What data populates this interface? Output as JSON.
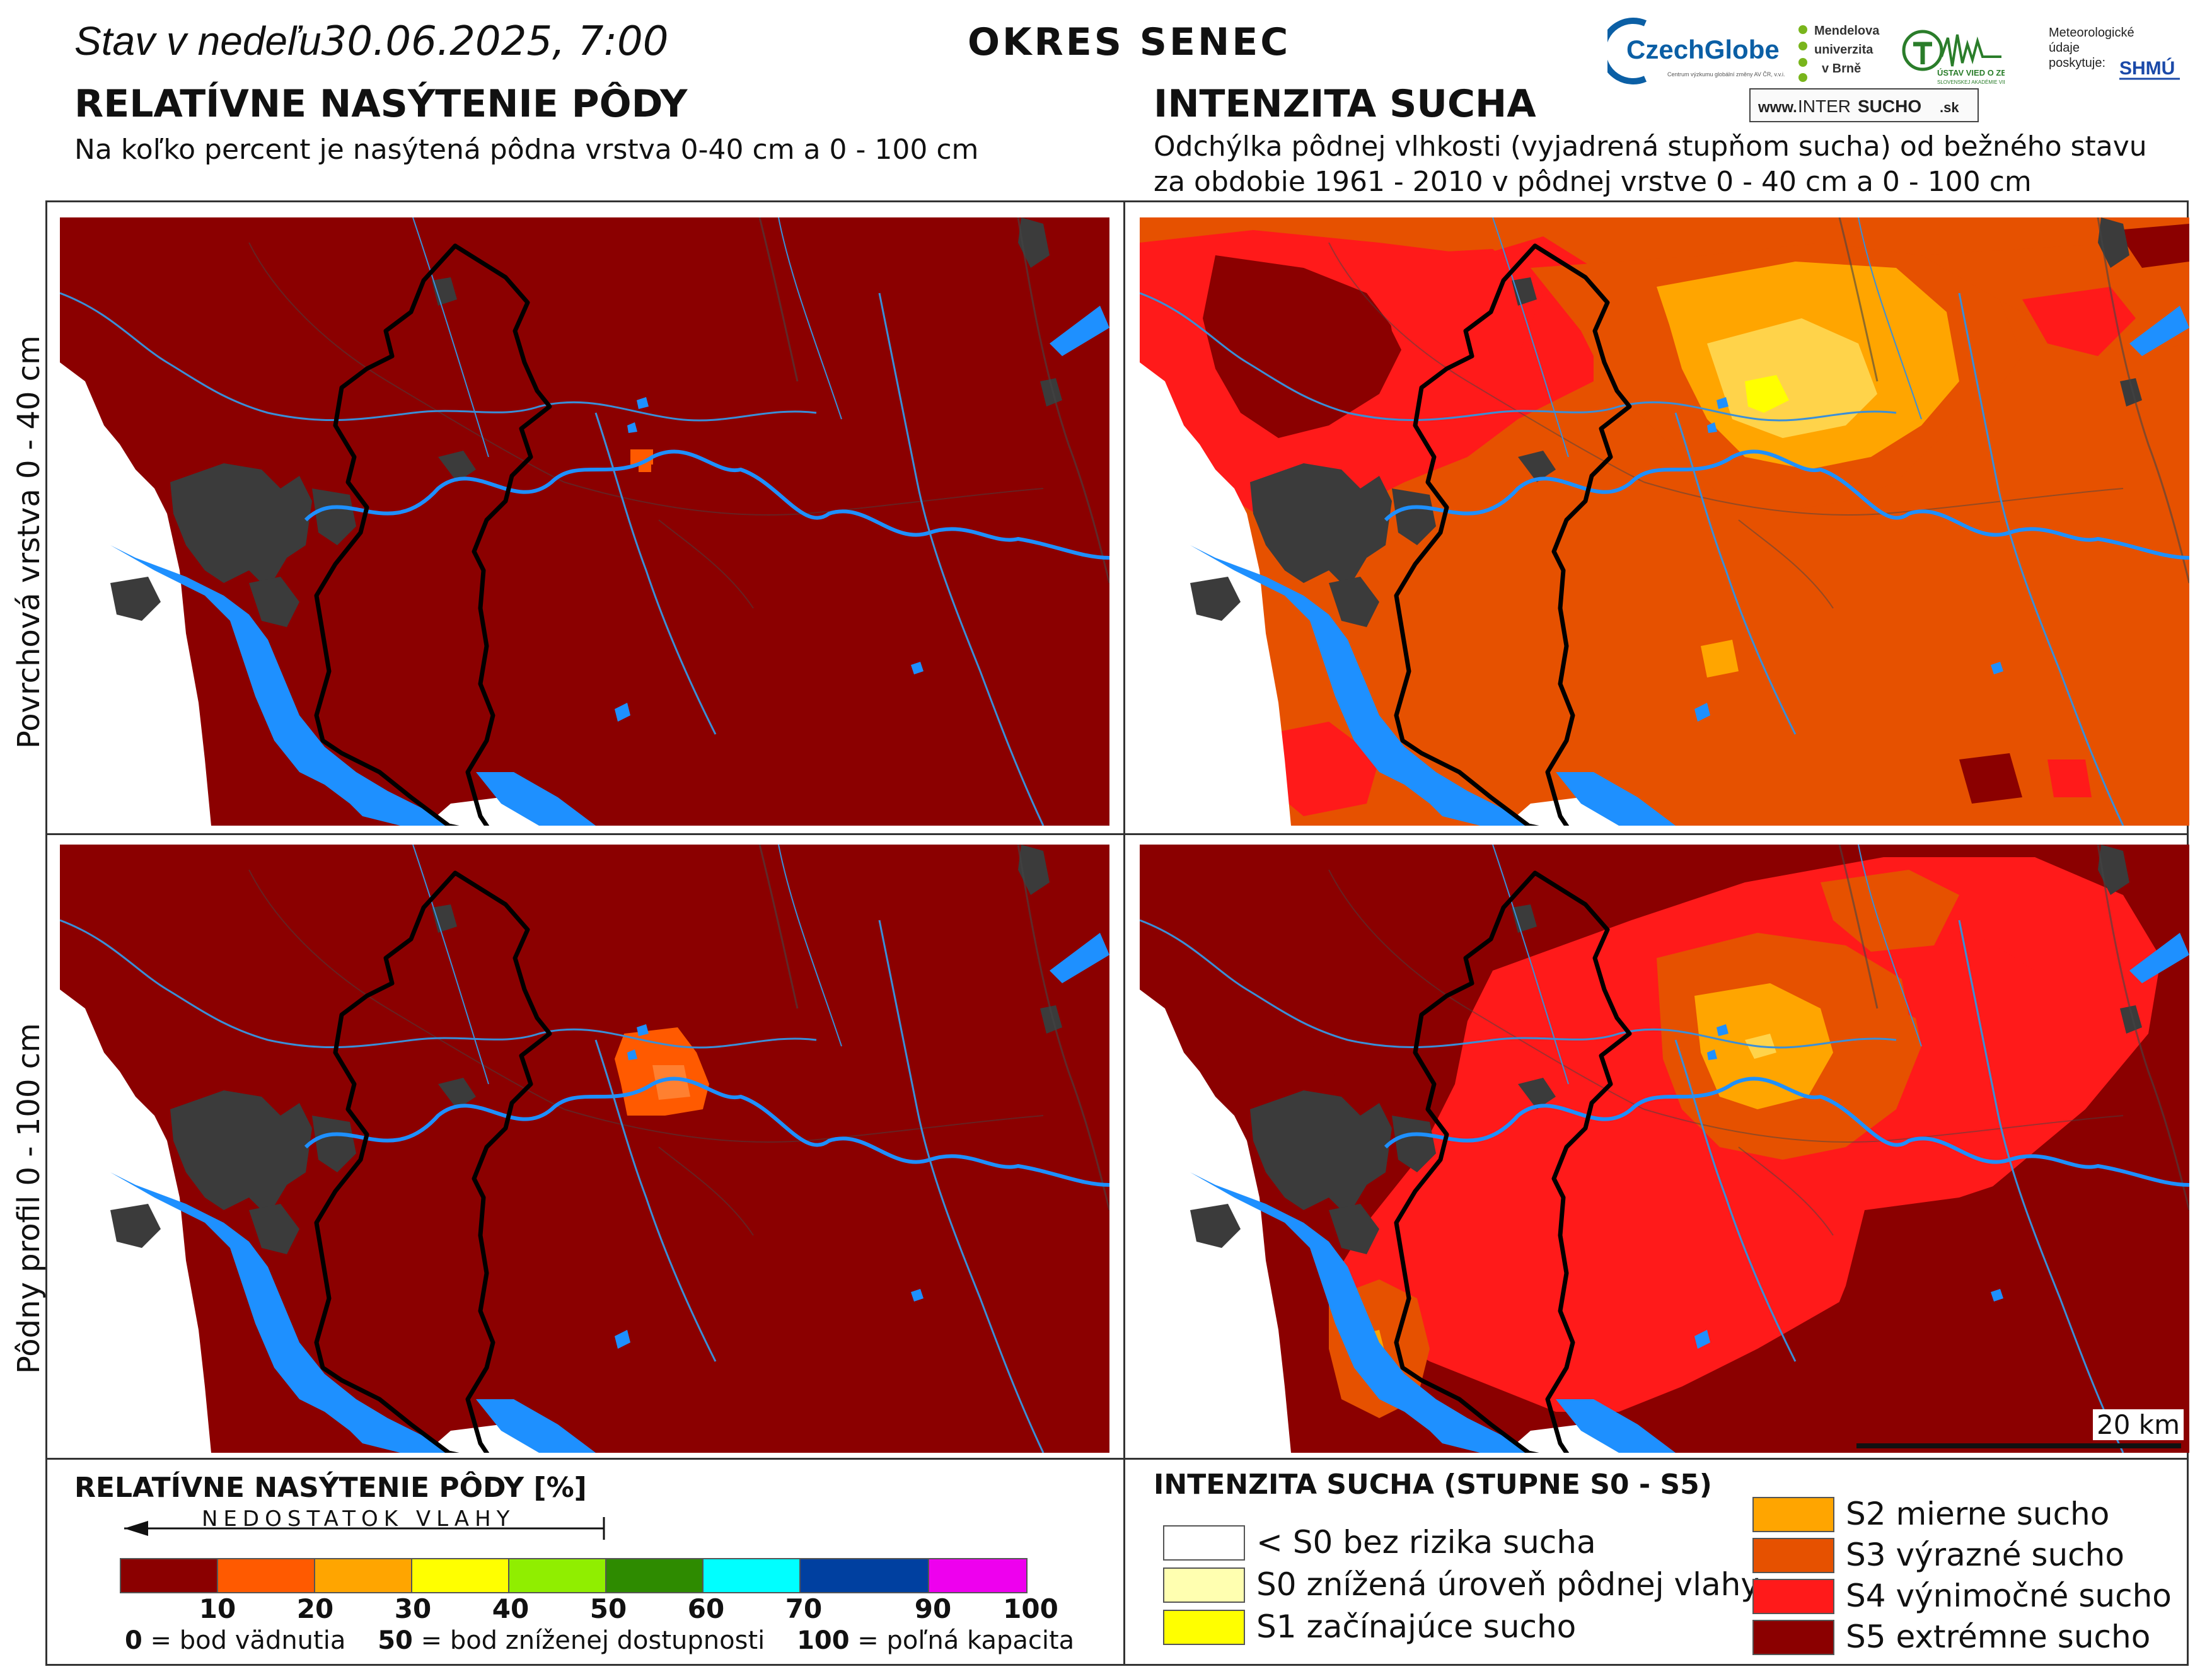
{
  "header": {
    "date_prefix": "Stav v nedeľu",
    "date_value": "30.06.2025, 7:00",
    "district": "OKRES  SENEC"
  },
  "logos": {
    "czechglobe": "CzechGlobe",
    "czechglobe_sub": "Centrum výzkumu globální změny AV ČR, v.v.i.",
    "mendel": [
      "Mendelova",
      "univerzita",
      "v Brně"
    ],
    "uvz": "ÚSTAV VIED O ZEMI",
    "uvz_sub": "SLOVENSKEJ AKADÉMIE VIED",
    "shmu_caption": [
      "Meteorologické",
      "údaje",
      "poskytuje:"
    ],
    "shmu": "SHMÚ",
    "intersucho_www": "www.",
    "intersucho_inter": "INTER",
    "intersucho_sucho": "SUCHO",
    "intersucho_sk": ".sk"
  },
  "left_panel": {
    "title": "RELATÍVNE NASÝTENIE PÔDY",
    "subtitle": "Na koľko percent je nasýtená pôdna vrstva 0-40 cm a 0 - 100 cm"
  },
  "right_panel": {
    "title": "INTENZITA SUCHA",
    "subtitle_line1": "Odchýlka pôdnej vlhkosti (vyjadrená stupňom sucha) od bežného stavu",
    "subtitle_line2": "za obdobie 1961 - 2010 v pôdnej vrstve 0 - 40 cm a 0 - 100 cm"
  },
  "rows": {
    "top": "Povrchová vrstva 0 - 40 cm",
    "bottom": "Pôdny profil 0 - 100 cm"
  },
  "scale": "20 km",
  "saturation_legend": {
    "title": "RELATÍVNE NASÝTENIE PÔDY [%]",
    "deficit_label": "NEDOSTATOK VLAHY",
    "ticks": [
      "10",
      "20",
      "30",
      "40",
      "50",
      "60",
      "70",
      "90",
      "100"
    ],
    "colors": [
      "#8b0000",
      "#ff5a00",
      "#ffa500",
      "#ffff00",
      "#90ee00",
      "#2e8b00",
      "#00ffff",
      "#0040a0",
      "#ee00ee"
    ],
    "footnote": [
      {
        "value": "0",
        "text": " = bod vädnutia"
      },
      {
        "value": "50",
        "text": " = bod zníženej dostupnosti"
      },
      {
        "value": "100",
        "text": " = poľná kapacita"
      }
    ]
  },
  "drought_legend": {
    "title": "INTENZITA SUCHA (STUPNE S0 - S5)",
    "items": [
      {
        "label": "< S0 bez rizika sucha",
        "color": "#ffffff"
      },
      {
        "label": "S0 znížená úroveň pôdnej vlahy",
        "color": "#ffffb0"
      },
      {
        "label": "S1 začínajúce sucho",
        "color": "#ffff00"
      },
      {
        "label": "S2 mierne sucho",
        "color": "#ffa500"
      },
      {
        "label": "S3 výrazné sucho",
        "color": "#e65100"
      },
      {
        "label": "S4 výnimočné sucho",
        "color": "#ff1a1a"
      },
      {
        "label": "S5 extrémne sucho",
        "color": "#8b0000"
      }
    ]
  },
  "map_colors": {
    "saturation_base": "#8b0000",
    "urban": "#3b3b3b",
    "water": "#1e90ff",
    "border": "#000000"
  }
}
